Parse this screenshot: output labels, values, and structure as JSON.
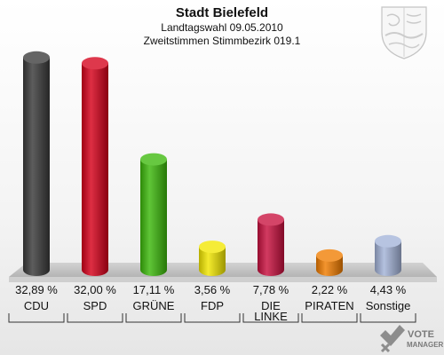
{
  "header": {
    "title": "Stadt Bielefeld",
    "subtitle1": "Landtagswahl 09.05.2010",
    "subtitle2": "Zweitstimmen Stimmbezirk 019.1"
  },
  "logo": {
    "line1": "VOTE",
    "line2": "MANAGER"
  },
  "chart_data": {
    "type": "bar",
    "title": "Stadt Bielefeld",
    "subtitle": "Landtagswahl 09.05.2010 — Zweitstimmen Stimmbezirk 019.1",
    "categories": [
      "CDU",
      "SPD",
      "GRÜNE",
      "FDP",
      "DIE LINKE",
      "PIRATEN",
      "Sonstige"
    ],
    "values": [
      32.89,
      32.0,
      17.11,
      3.56,
      7.78,
      2.22,
      4.43
    ],
    "value_labels": [
      "32,89 %",
      "32,00 %",
      "17,11 %",
      "3,56 %",
      "7,78 %",
      "2,22 %",
      "4,43 %"
    ],
    "colors": [
      "#3a3a3a",
      "#d5001a",
      "#3cb80b",
      "#f2e600",
      "#c8103e",
      "#f07c00",
      "#a3b3d8"
    ],
    "ylim": [
      0,
      33
    ],
    "grid": false,
    "legend": "none"
  }
}
